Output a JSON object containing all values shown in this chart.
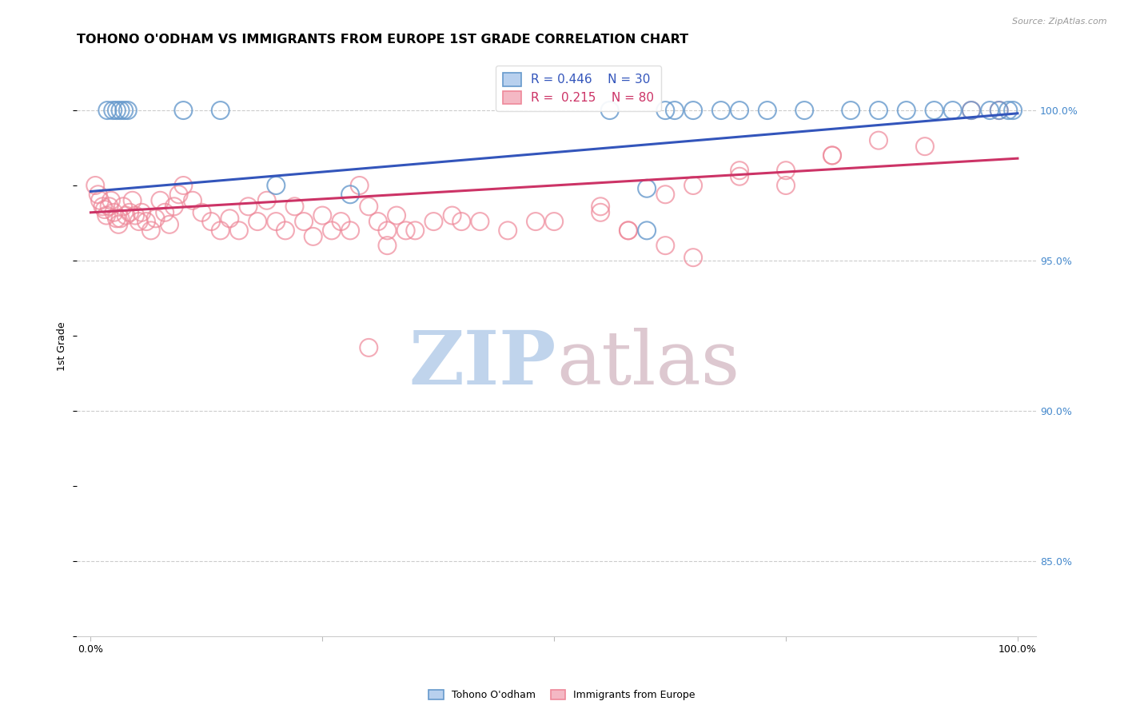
{
  "title": "TOHONO O'ODHAM VS IMMIGRANTS FROM EUROPE 1ST GRADE CORRELATION CHART",
  "source": "Source: ZipAtlas.com",
  "ylabel": "1st Grade",
  "legend1_label": "R = 0.446    N = 30",
  "legend2_label": "R =  0.215    N = 80",
  "blue_edge_color": "#6699cc",
  "pink_edge_color": "#ee8899",
  "blue_line_color": "#3355bb",
  "pink_line_color": "#cc3366",
  "right_tick_color": "#4488cc",
  "grid_color": "#cccccc",
  "bg_color": "#ffffff",
  "xlim": [
    -0.015,
    1.02
  ],
  "ylim": [
    0.825,
    1.018
  ],
  "yticks": [
    0.85,
    0.9,
    0.95,
    1.0
  ],
  "ytick_labels": [
    "85.0%",
    "90.0%",
    "95.0%",
    "100.0%"
  ],
  "blue_line_x": [
    0.0,
    1.0
  ],
  "blue_line_y": [
    0.973,
    0.999
  ],
  "pink_line_x": [
    0.0,
    1.0
  ],
  "pink_line_y": [
    0.966,
    0.984
  ],
  "blue_x": [
    0.018,
    0.024,
    0.028,
    0.032,
    0.036,
    0.04,
    0.1,
    0.14,
    0.2,
    0.28,
    0.6,
    0.62,
    0.65,
    0.68,
    0.7,
    0.73,
    0.77,
    0.82,
    0.85,
    0.88,
    0.91,
    0.93,
    0.95,
    0.97,
    0.98,
    0.99,
    0.995,
    0.6,
    0.63,
    0.56
  ],
  "blue_y": [
    1.0,
    1.0,
    1.0,
    1.0,
    1.0,
    1.0,
    1.0,
    1.0,
    0.975,
    0.972,
    0.96,
    1.0,
    1.0,
    1.0,
    1.0,
    1.0,
    1.0,
    1.0,
    1.0,
    1.0,
    1.0,
    1.0,
    1.0,
    1.0,
    1.0,
    1.0,
    1.0,
    0.974,
    1.0,
    1.0
  ],
  "pink_x": [
    0.005,
    0.008,
    0.01,
    0.013,
    0.015,
    0.017,
    0.02,
    0.022,
    0.025,
    0.028,
    0.03,
    0.032,
    0.035,
    0.038,
    0.042,
    0.045,
    0.048,
    0.052,
    0.055,
    0.06,
    0.065,
    0.07,
    0.075,
    0.08,
    0.085,
    0.09,
    0.095,
    0.1,
    0.11,
    0.12,
    0.13,
    0.14,
    0.15,
    0.16,
    0.17,
    0.18,
    0.19,
    0.2,
    0.21,
    0.22,
    0.23,
    0.24,
    0.25,
    0.26,
    0.27,
    0.28,
    0.29,
    0.3,
    0.31,
    0.32,
    0.33,
    0.34,
    0.35,
    0.37,
    0.39,
    0.4,
    0.42,
    0.45,
    0.48,
    0.5,
    0.55,
    0.58,
    0.62,
    0.65,
    0.7,
    0.75,
    0.8,
    0.85,
    0.9,
    0.95,
    0.3,
    0.32,
    0.55,
    0.58,
    0.62,
    0.65,
    0.7,
    0.75,
    0.8,
    0.98
  ],
  "pink_y": [
    0.975,
    0.972,
    0.97,
    0.968,
    0.967,
    0.965,
    0.968,
    0.97,
    0.966,
    0.964,
    0.962,
    0.964,
    0.968,
    0.965,
    0.966,
    0.97,
    0.965,
    0.963,
    0.966,
    0.963,
    0.96,
    0.964,
    0.97,
    0.966,
    0.962,
    0.968,
    0.972,
    0.975,
    0.97,
    0.966,
    0.963,
    0.96,
    0.964,
    0.96,
    0.968,
    0.963,
    0.97,
    0.963,
    0.96,
    0.968,
    0.963,
    0.958,
    0.965,
    0.96,
    0.963,
    0.96,
    0.975,
    0.968,
    0.963,
    0.96,
    0.965,
    0.96,
    0.96,
    0.963,
    0.965,
    0.963,
    0.963,
    0.96,
    0.963,
    0.963,
    0.966,
    0.96,
    0.972,
    0.975,
    0.978,
    0.98,
    0.985,
    0.99,
    0.988,
    1.0,
    0.921,
    0.955,
    0.968,
    0.96,
    0.955,
    0.951,
    0.98,
    0.975,
    0.985,
    1.0
  ]
}
